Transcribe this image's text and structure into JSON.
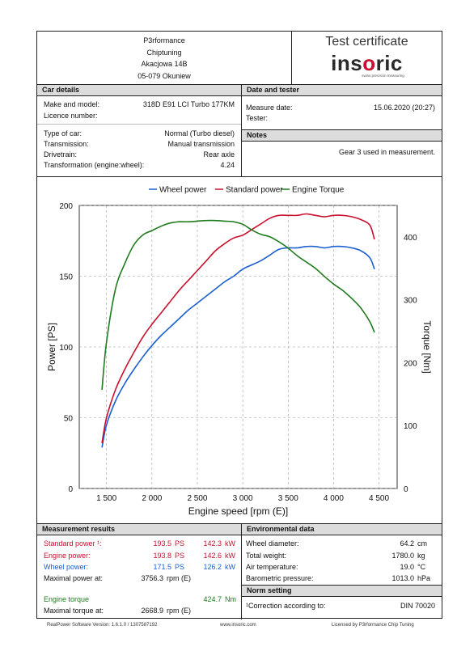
{
  "header": {
    "address_lines": [
      "P3rformance",
      "Chiptuning",
      "Akacjowa 14B",
      "05-079 Okuniew"
    ],
    "cert_title": "Test certificate",
    "logo_pre": "ins",
    "logo_o": "o",
    "logo_post": "ric",
    "logo_sub": "swiss precision measuring"
  },
  "car_details": {
    "heading": "Car details",
    "make_label": "Make and model:",
    "make_value": "318D E91 LCI Turbo 177KM",
    "licence_label": "Licence number:",
    "type_label": "Type of car:",
    "type_value": "Normal (Turbo diesel)",
    "transmission_label": "Transmission:",
    "transmission_value": "Manual transmission",
    "drivetrain_label": "Drivetrain:",
    "drivetrain_value": "Rear axle",
    "transformation_label": "Transformation (engine:wheel):",
    "transformation_value": "4.24"
  },
  "date_tester": {
    "heading": "Date and tester",
    "measure_label": "Measure date:",
    "measure_value": "15.06.2020 (20:27)",
    "tester_label": "Tester:"
  },
  "notes": {
    "heading": "Notes",
    "text": "Gear 3 used in measurement."
  },
  "chart_data": {
    "type": "line",
    "xlabel": "Engine speed [rpm (E)]",
    "ylabel": "Power [PS]",
    "y2label": "Torque [Nm]",
    "xlim": [
      1200,
      4700
    ],
    "ylim": [
      0,
      200
    ],
    "y2lim": [
      0,
      450
    ],
    "x_ticks": [
      1500,
      2000,
      2500,
      3000,
      3500,
      4000,
      4500
    ],
    "x_tick_labels": [
      "1 500",
      "2 000",
      "2 500",
      "3 000",
      "3 500",
      "4 000",
      "4 500"
    ],
    "y_ticks": [
      0,
      50,
      100,
      150,
      200
    ],
    "y2_ticks": [
      0,
      100,
      200,
      300,
      400
    ],
    "grid": true,
    "legend_position": "top",
    "series": [
      {
        "name": "Wheel power",
        "color": "#1a5fd0",
        "axis": "left",
        "x": [
          1450,
          1500,
          1600,
          1700,
          1800,
          1900,
          2000,
          2100,
          2200,
          2300,
          2400,
          2500,
          2600,
          2700,
          2800,
          2900,
          3000,
          3100,
          3200,
          3300,
          3400,
          3500,
          3600,
          3700,
          3800,
          3900,
          4000,
          4100,
          4200,
          4300,
          4400,
          4450
        ],
        "y": [
          29,
          45,
          62,
          74,
          84,
          93,
          101,
          108,
          114,
          120,
          126,
          131,
          136,
          141,
          146,
          150,
          155,
          158,
          161,
          165,
          169,
          170,
          170,
          171,
          171,
          170,
          171,
          171,
          170,
          168,
          163,
          155
        ]
      },
      {
        "name": "Standard power",
        "color": "#c8102e",
        "axis": "left",
        "x": [
          1450,
          1500,
          1600,
          1700,
          1800,
          1900,
          2000,
          2100,
          2200,
          2300,
          2400,
          2500,
          2600,
          2700,
          2800,
          2900,
          3000,
          3100,
          3200,
          3300,
          3400,
          3500,
          3600,
          3700,
          3800,
          3900,
          4000,
          4100,
          4200,
          4300,
          4400,
          4450
        ],
        "y": [
          32,
          50,
          70,
          84,
          96,
          107,
          116,
          124,
          132,
          140,
          147,
          154,
          161,
          168,
          173,
          177,
          179,
          183,
          187,
          191,
          193,
          193,
          193,
          194,
          193,
          192,
          193,
          193,
          192,
          190,
          186,
          176
        ]
      },
      {
        "name": "Engine Torque",
        "color": "#1e7b1e",
        "axis": "right",
        "x": [
          1450,
          1500,
          1600,
          1700,
          1800,
          1900,
          2000,
          2100,
          2200,
          2300,
          2400,
          2500,
          2600,
          2700,
          2800,
          2900,
          3000,
          3100,
          3200,
          3300,
          3400,
          3500,
          3600,
          3700,
          3800,
          3900,
          4000,
          4100,
          4200,
          4300,
          4400,
          4450
        ],
        "y": [
          157,
          233,
          318,
          357,
          387,
          403,
          410,
          417,
          422,
          424,
          424,
          425,
          426,
          426,
          425,
          424,
          420,
          411,
          404,
          400,
          392,
          382,
          370,
          360,
          350,
          337,
          325,
          315,
          302,
          287,
          265,
          248
        ]
      }
    ]
  },
  "measurement_results": {
    "heading": "Measurement results",
    "standard_label": "Standard power ¹:",
    "standard_ps": "193.5",
    "standard_kw": "142.3",
    "engine_label": "Engine power:",
    "engine_ps": "193.8",
    "engine_kw": "142.6",
    "wheel_label": "Wheel power:",
    "wheel_ps": "171.5",
    "wheel_kw": "126.2",
    "unit_ps": "PS",
    "unit_kw": "kW",
    "max_power_label": "Maximal power at:",
    "max_power_value": "3756.3",
    "rpm_unit": "rpm (E)",
    "torque_label": "Engine torque",
    "torque_value": "424.7",
    "torque_unit": "Nm",
    "max_torque_label": "Maximal torque at:",
    "max_torque_value": "2668.9"
  },
  "environmental": {
    "heading": "Environmental data",
    "wheel_diam_label": "Wheel diameter:",
    "wheel_diam_value": "64.2",
    "wheel_diam_unit": "cm",
    "weight_label": "Total weight:",
    "weight_value": "1780.0",
    "weight_unit": "kg",
    "air_label": "Air temperature:",
    "air_value": "19.0",
    "air_unit": "°C",
    "baro_label": "Barometric pressure:",
    "baro_value": "1013.0",
    "baro_unit": "hPa"
  },
  "norm": {
    "heading": "Norm setting",
    "label": "¹Correction according to:",
    "value": "DIN 70020"
  },
  "footer": {
    "software": "RealPower Software Version: 1.6.1.0 / 1307587192",
    "website": "www.insoric.com",
    "license": "Licensed by P3rformance Chip Tuning"
  }
}
